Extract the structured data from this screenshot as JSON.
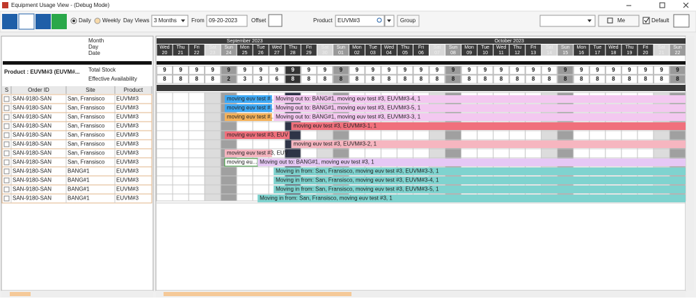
{
  "window": {
    "title": "Equipment Usage View - (Debug Mode)"
  },
  "toolbar": {
    "daily": "Daily",
    "weekly": "Weekly",
    "day_views": "Day Views",
    "range": "3 Months",
    "from": "From",
    "from_date": "09-20-2023",
    "offset": "Offset",
    "product": "Product",
    "product_value": "EUVM#3",
    "group": "Group",
    "user": "Me",
    "default": "Default"
  },
  "header_labels": {
    "month": "Month",
    "day": "Day",
    "date": "Date",
    "product": "Product : EUVM#3 (EUVM#...",
    "total_stock": "Total Stock",
    "effective_availability": "Effective Availability"
  },
  "calendar": {
    "months": [
      "September 2023",
      "October 2023"
    ],
    "days": [
      "Wed",
      "Thu",
      "Fri",
      "Sat",
      "Sun",
      "Mon",
      "Tue",
      "Wed",
      "Thu",
      "Fri",
      "Sat",
      "Sun",
      "Mon",
      "Tue",
      "Wed",
      "Thu",
      "Fri",
      "Sat",
      "Sun",
      "Mon",
      "Tue",
      "Wed",
      "Thu",
      "Fri",
      "Sat",
      "Sun",
      "Mon",
      "Tue",
      "Wed",
      "Thu",
      "Fri",
      "Sat",
      "Sun"
    ],
    "dates": [
      "20",
      "21",
      "22",
      "23",
      "24",
      "25",
      "26",
      "27",
      "28",
      "29",
      "30",
      "01",
      "02",
      "03",
      "04",
      "05",
      "06",
      "07",
      "08",
      "09",
      "10",
      "11",
      "12",
      "13",
      "14",
      "15",
      "16",
      "17",
      "18",
      "19",
      "20",
      "21",
      "22"
    ],
    "total_stock": [
      9,
      9,
      9,
      9,
      9,
      9,
      9,
      9,
      9,
      9,
      9,
      9,
      9,
      9,
      9,
      9,
      9,
      9,
      9,
      9,
      9,
      9,
      9,
      9,
      9,
      9,
      9,
      9,
      9,
      9,
      9,
      9,
      9
    ],
    "effective_availability": [
      8,
      8,
      8,
      8,
      2,
      3,
      3,
      6,
      8,
      8,
      8,
      8,
      8,
      8,
      8,
      8,
      8,
      8,
      8,
      8,
      8,
      8,
      8,
      8,
      8,
      8,
      8,
      8,
      8,
      8,
      8,
      8,
      8
    ]
  },
  "table": {
    "columns": [
      "S",
      "Order ID",
      "Site",
      "Product"
    ],
    "rows": [
      [
        "SAN-9180-SAN",
        "San, Fransisco",
        "EUVM#3"
      ],
      [
        "SAN-9180-SAN",
        "San, Fransisco",
        "EUVM#3"
      ],
      [
        "SAN-9180-SAN",
        "San, Fransisco",
        "EUVM#3"
      ],
      [
        "SAN-9180-SAN",
        "San, Fransisco",
        "EUVM#3"
      ],
      [
        "SAN-9180-SAN",
        "San, Fransisco",
        "EUVM#3"
      ],
      [
        "SAN-9180-SAN",
        "San, Fransisco",
        "EUVM#3"
      ],
      [
        "SAN-9180-SAN",
        "San, Fransisco",
        "EUVM#3"
      ],
      [
        "SAN-9180-SAN",
        "San, Fransisco",
        "EUVM#3"
      ],
      [
        "SAN-9180-SAN",
        "BANG#1",
        "EUVM#3"
      ],
      [
        "SAN-9180-SAN",
        "BANG#1",
        "EUVM#3"
      ],
      [
        "SAN-9180-SAN",
        "BANG#1",
        "EUVM#3"
      ],
      [
        "SAN-9180-SAN",
        "BANG#1",
        "EUVM#3"
      ]
    ]
  },
  "bars": [
    [
      {
        "label": "moving euv test #...",
        "color": "#3fa9f5"
      },
      {
        "label": "Moving out to: BANG#1, moving euv test #3, EUVM#3-4, 1",
        "color": "#f3c8f0"
      }
    ],
    [
      {
        "label": "moving euv test #...",
        "color": "#3fa9f5"
      },
      {
        "label": "Moving out to: BANG#1, moving euv test #3, EUVM#3-5, 1",
        "color": "#f3c8f0"
      }
    ],
    [
      {
        "label": "moving euv test #...",
        "color": "#f5b25a"
      },
      {
        "label": "Moving out to: BANG#1, moving euv test #3, EUVM#3-3, 1",
        "color": "#f3c8f0"
      }
    ],
    [
      {
        "label": "moving euv test #3, EUVM#3-1, 1",
        "color": "#f0707c"
      }
    ],
    [
      {
        "label": "moving euv test #3, EUV",
        "color": "#f0707c"
      }
    ],
    [
      {
        "label": "moving euv test #3, EUVM#3-2, 1",
        "color": "#f6b6c0"
      }
    ],
    [
      {
        "label": "moving euv test #3, EUV",
        "color": "#f6b6c0"
      }
    ],
    [
      {
        "label": "moving eu...",
        "color": "#ffffff"
      },
      {
        "label": "Moving out to: BANG#1, moving euv test #3, 1",
        "color": "#e6c8f5"
      }
    ],
    [
      {
        "label": "Moving in from: San, Fransisco, moving euv test #3, EUVM#3-3, 1",
        "color": "#7fd3cf"
      }
    ],
    [
      {
        "label": "Moving in from: San, Fransisco, moving euv test #3, EUVM#3-4, 1",
        "color": "#7fd3cf"
      }
    ],
    [
      {
        "label": "Moving in from: San, Fransisco, moving euv test #3, EUVM#3-5, 1",
        "color": "#7fd3cf"
      }
    ],
    [
      {
        "label": "Moving in from: San, Fransisco, moving euv test #3, 1",
        "color": "#7fd3cf"
      }
    ]
  ]
}
